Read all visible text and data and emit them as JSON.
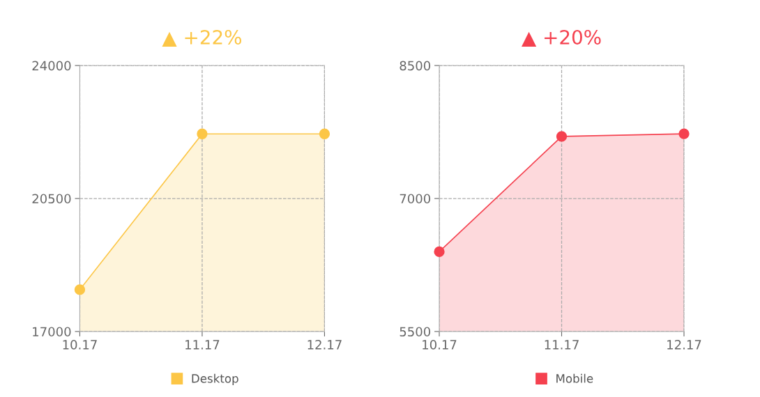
{
  "chart_data": [
    {
      "type": "area",
      "title": "▲ +22%",
      "categories": [
        "10.17",
        "11.17",
        "12.17"
      ],
      "series": [
        {
          "name": "Desktop",
          "color": "#fcc646",
          "values": [
            18100,
            22200,
            22200
          ]
        }
      ],
      "ylim": [
        17000,
        24000
      ],
      "yticks": [
        17000,
        20500,
        24000
      ],
      "grid": true,
      "legend": "bottom",
      "marker": "circle"
    },
    {
      "type": "area",
      "title": "▲ +20%",
      "categories": [
        "10.17",
        "11.17",
        "12.17"
      ],
      "series": [
        {
          "name": "Mobile",
          "color": "#f5414f",
          "values": [
            6400,
            7700,
            7730
          ]
        }
      ],
      "ylim": [
        5500,
        8500
      ],
      "yticks": [
        5500,
        7000,
        8500
      ],
      "grid": true,
      "legend": "bottom",
      "marker": "circle"
    }
  ]
}
